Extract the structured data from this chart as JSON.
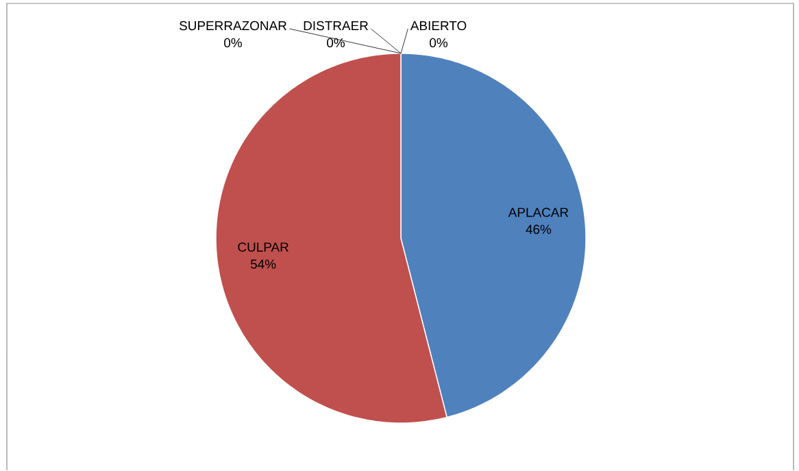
{
  "chart_data": {
    "type": "pie",
    "categories": [
      "APLACAR",
      "CULPAR",
      "SUPERRAZONAR",
      "DISTRAER",
      "ABIERTO"
    ],
    "values": [
      46,
      54,
      0,
      0,
      0
    ],
    "value_labels": [
      "46%",
      "54%",
      "0%",
      "0%",
      "0%"
    ],
    "colors": [
      "#4f81bd",
      "#c0504d",
      "#9bbb59",
      "#8064a2",
      "#4bacc6"
    ]
  }
}
